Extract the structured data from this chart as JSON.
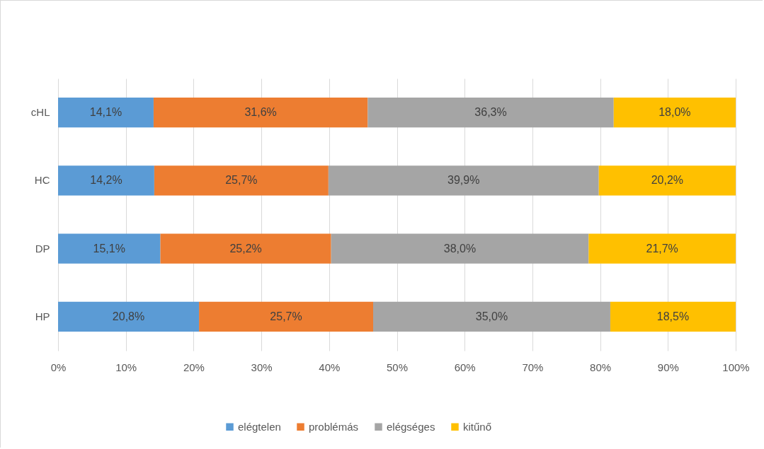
{
  "chart_data": {
    "type": "bar",
    "orientation": "horizontal",
    "stacked": true,
    "categories": [
      "cHL",
      "HC",
      "DP",
      "HP"
    ],
    "series": [
      {
        "name": "elégtelen",
        "color": "#5b9bd5",
        "values": [
          14.1,
          14.2,
          15.1,
          20.8
        ],
        "value_labels": [
          "14,1%",
          "14,2%",
          "15,1%",
          "20,8%"
        ]
      },
      {
        "name": "problémás",
        "color": "#ed7d31",
        "values": [
          31.6,
          25.7,
          25.2,
          25.7
        ],
        "value_labels": [
          "31,6%",
          "25,7%",
          "25,2%",
          "25,7%"
        ]
      },
      {
        "name": "elégséges",
        "color": "#a5a5a5",
        "values": [
          36.3,
          39.9,
          38.0,
          35.0
        ],
        "value_labels": [
          "36,3%",
          "39,9%",
          "38,0%",
          "35,0%"
        ]
      },
      {
        "name": "kitűnő",
        "color": "#ffc000",
        "values": [
          18.0,
          20.2,
          21.7,
          18.5
        ],
        "value_labels": [
          "18,0%",
          "20,2%",
          "21,7%",
          "18,5%"
        ]
      }
    ],
    "xlim": [
      0,
      100
    ],
    "xticks": [
      {
        "value": 0,
        "label": "0%"
      },
      {
        "value": 10,
        "label": "10%"
      },
      {
        "value": 20,
        "label": "20%"
      },
      {
        "value": 30,
        "label": "30%"
      },
      {
        "value": 40,
        "label": "40%"
      },
      {
        "value": 50,
        "label": "50%"
      },
      {
        "value": 60,
        "label": "60%"
      },
      {
        "value": 70,
        "label": "70%"
      },
      {
        "value": 80,
        "label": "80%"
      },
      {
        "value": 90,
        "label": "90%"
      },
      {
        "value": 100,
        "label": "100%"
      }
    ],
    "grid": "x",
    "legend": "bottom"
  }
}
